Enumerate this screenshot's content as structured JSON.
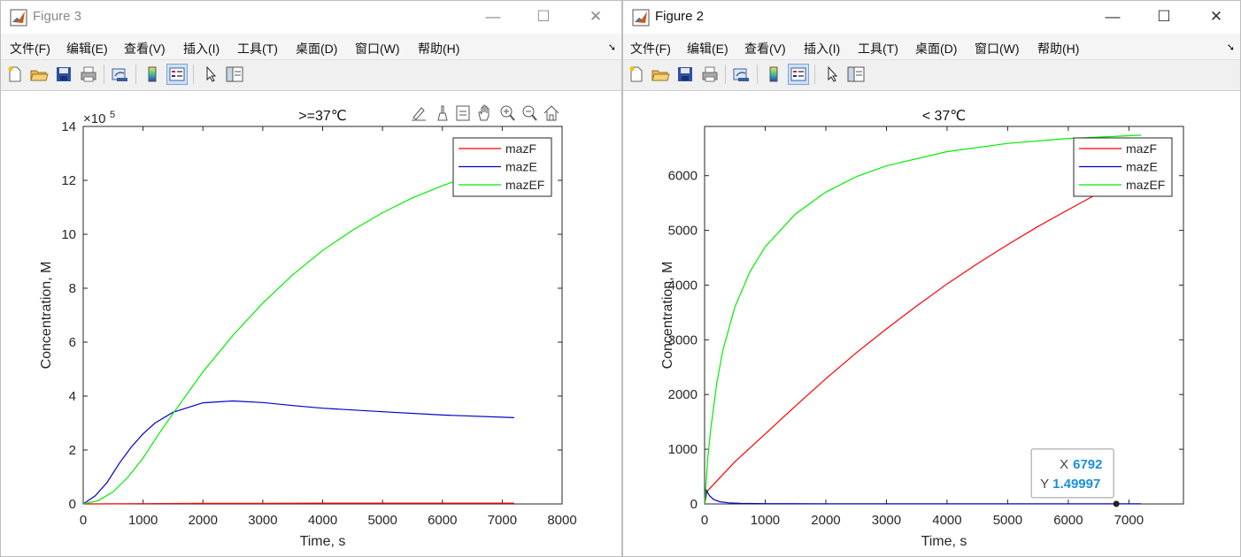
{
  "windows": [
    {
      "title": "Figure 3",
      "active": false,
      "menus": [
        "文件(F)",
        "编辑(E)",
        "查看(V)",
        "插入(I)",
        "工具(T)",
        "桌面(D)",
        "窗口(W)",
        "帮助(H)"
      ],
      "axes_toolbar": [
        "edit-plot-icon",
        "brush-icon",
        "data-tips-icon",
        "pan-icon",
        "zoom-in-icon",
        "zoom-out-icon",
        "home-icon"
      ]
    },
    {
      "title": "Figure 2",
      "active": true,
      "menus": [
        "文件(F)",
        "编辑(E)",
        "查看(V)",
        "插入(I)",
        "工具(T)",
        "桌面(D)",
        "窗口(W)",
        "帮助(H)"
      ]
    }
  ],
  "toolbar_icons": [
    "new-file-icon",
    "open-folder-icon",
    "save-icon",
    "print-icon",
    "link-plot-icon",
    "colorbar-icon",
    "legend-icon",
    "pointer-icon",
    "property-inspector-icon"
  ],
  "chart_data": [
    {
      "type": "line",
      "title": ">=37℃",
      "xlabel": "Time, s",
      "ylabel": "Concentration, M",
      "xlim": [
        0,
        8000
      ],
      "ylim": [
        0,
        14
      ],
      "y_exponent": "×10",
      "y_exponent_power": "5",
      "xticks": [
        "0",
        "1000",
        "2000",
        "3000",
        "4000",
        "5000",
        "6000",
        "7000",
        "8000"
      ],
      "yticks": [
        "0",
        "2",
        "4",
        "6",
        "8",
        "10",
        "12",
        "14"
      ],
      "grid": false,
      "legend_position": "top-right",
      "series": [
        {
          "name": "mazF",
          "color": "#ff0000",
          "x": [
            0,
            1000,
            2000,
            3000,
            4000,
            5000,
            6000,
            7200
          ],
          "y": [
            0,
            0.01,
            0.02,
            0.02,
            0.03,
            0.03,
            0.03,
            0.03
          ]
        },
        {
          "name": "mazE",
          "color": "#0000cc",
          "x": [
            0,
            200,
            400,
            600,
            800,
            1000,
            1200,
            1500,
            2000,
            2500,
            3000,
            3500,
            4000,
            5000,
            6000,
            7200
          ],
          "y": [
            0,
            0.3,
            0.8,
            1.5,
            2.1,
            2.6,
            3.0,
            3.4,
            3.75,
            3.82,
            3.76,
            3.65,
            3.55,
            3.42,
            3.3,
            3.2
          ]
        },
        {
          "name": "mazEF",
          "color": "#00ee00",
          "x": [
            0,
            250,
            500,
            750,
            1000,
            1250,
            1500,
            2000,
            2500,
            3000,
            3500,
            4000,
            4500,
            5000,
            5500,
            6000,
            6500,
            7200
          ],
          "y": [
            0,
            0.12,
            0.45,
            1.0,
            1.7,
            2.55,
            3.35,
            4.9,
            6.25,
            7.45,
            8.5,
            9.4,
            10.15,
            10.8,
            11.35,
            11.8,
            12.2,
            12.6
          ]
        }
      ]
    },
    {
      "type": "line",
      "title": "< 37℃",
      "xlabel": "Time, s",
      "ylabel": "Concentration, M",
      "xlim": [
        0,
        7900
      ],
      "ylim": [
        0,
        6900
      ],
      "xticks": [
        "0",
        "1000",
        "2000",
        "3000",
        "4000",
        "5000",
        "6000",
        "7000"
      ],
      "yticks": [
        "0",
        "1000",
        "2000",
        "3000",
        "4000",
        "5000",
        "6000"
      ],
      "grid": false,
      "legend_position": "top-right",
      "series": [
        {
          "name": "mazF",
          "color": "#ff0000",
          "x": [
            0,
            40,
            500,
            1000,
            1500,
            2000,
            2500,
            3000,
            3500,
            4000,
            4500,
            5000,
            5500,
            6000,
            6500,
            7200
          ],
          "y": [
            0,
            230,
            770,
            1280,
            1790,
            2290,
            2760,
            3200,
            3620,
            4020,
            4390,
            4740,
            5070,
            5380,
            5680,
            6050
          ]
        },
        {
          "name": "mazE",
          "color": "#0000cc",
          "x": [
            0,
            30,
            80,
            150,
            250,
            400,
            600,
            1000,
            2000,
            4000,
            6000,
            7200
          ],
          "y": [
            0,
            250,
            150,
            80,
            40,
            20,
            10,
            5,
            3,
            2,
            1.5,
            1.5
          ]
        },
        {
          "name": "mazEF",
          "color": "#00ee00",
          "x": [
            0,
            50,
            100,
            200,
            300,
            500,
            750,
            1000,
            1500,
            2000,
            2500,
            3000,
            4000,
            5000,
            6000,
            7200
          ],
          "y": [
            0,
            800,
            1350,
            2200,
            2800,
            3600,
            4250,
            4700,
            5300,
            5700,
            5980,
            6180,
            6440,
            6590,
            6680,
            6740
          ]
        }
      ],
      "datatip": {
        "x_label": "X",
        "x_value": "6792",
        "y_label": "Y",
        "y_value": "1.49997",
        "x": 6792,
        "y": 1.49997
      }
    }
  ]
}
